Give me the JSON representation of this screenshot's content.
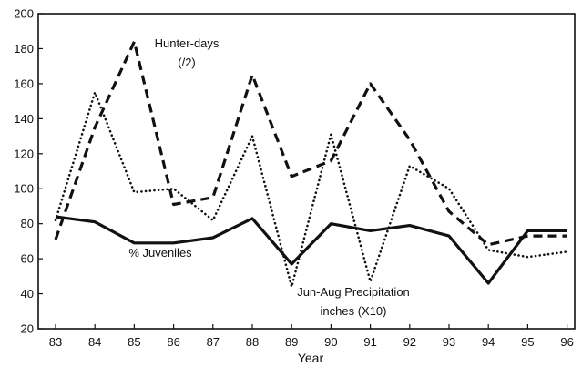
{
  "chart_data": {
    "type": "line",
    "xlabel": "Year",
    "ylabel": "",
    "x": [
      "83",
      "84",
      "85",
      "86",
      "87",
      "88",
      "89",
      "90",
      "91",
      "92",
      "93",
      "94",
      "95",
      "96"
    ],
    "ylim": [
      20,
      200
    ],
    "yticks": [
      20,
      40,
      60,
      80,
      100,
      120,
      140,
      160,
      180,
      200
    ],
    "grid": false,
    "series": [
      {
        "name": "Hunter-days (/2)",
        "style": "dashed",
        "values": [
          71,
          135,
          184,
          91,
          95,
          165,
          107,
          116,
          160,
          128,
          87,
          68,
          73,
          73
        ]
      },
      {
        "name": "Jun-Aug Precipitation inches (X10)",
        "style": "dotted",
        "values": [
          82,
          155,
          98,
          100,
          82,
          130,
          44,
          131,
          47,
          113,
          100,
          65,
          61,
          64
        ]
      },
      {
        "name": "% Juveniles",
        "style": "solid",
        "values": [
          84,
          81,
          69,
          69,
          72,
          83,
          57,
          80,
          76,
          79,
          73,
          46,
          76,
          76
        ]
      }
    ],
    "annotations": [
      {
        "lines": [
          "Hunter-days",
          "(/2)"
        ],
        "series": "Hunter-days (/2)"
      },
      {
        "lines": [
          "% Juveniles"
        ],
        "series": "% Juveniles"
      },
      {
        "lines": [
          "Jun-Aug Precipitation",
          "inches (X10)"
        ],
        "series": "Jun-Aug Precipitation inches (X10)"
      }
    ],
    "colors": {
      "line": "#111111",
      "background": "#ffffff"
    }
  }
}
